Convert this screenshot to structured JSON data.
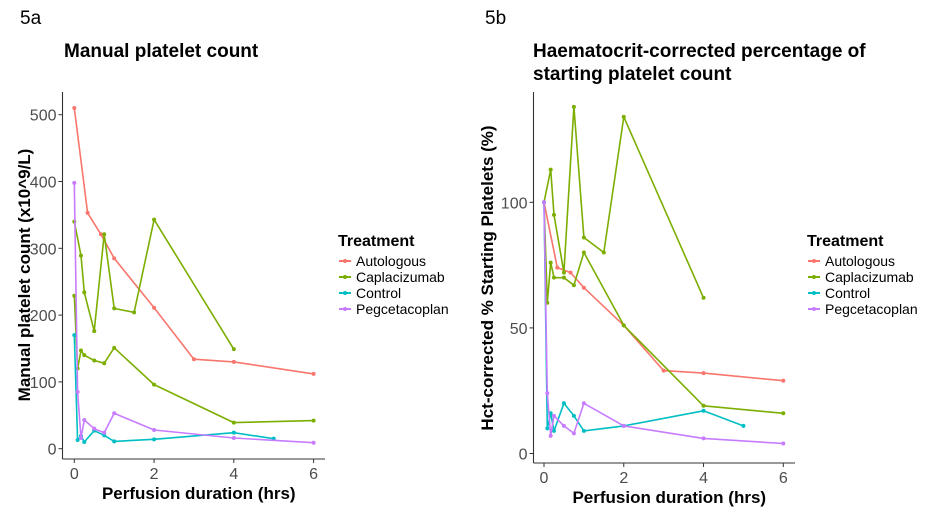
{
  "panels": [
    {
      "label": "5a",
      "title_lines": [
        "Manual platelet count"
      ]
    },
    {
      "label": "5b",
      "title_lines": [
        "Haematocrit-corrected percentage of",
        "starting platelet count"
      ]
    }
  ],
  "legend": {
    "title": "Treatment",
    "items": [
      {
        "name": "Autologous",
        "color": "#F8766D"
      },
      {
        "name": "Caplacizumab",
        "color": "#7CAE00"
      },
      {
        "name": "Control",
        "color": "#00BFC4"
      },
      {
        "name": "Pegcetacoplan",
        "color": "#C77CFF"
      }
    ]
  },
  "chart_data": [
    {
      "type": "line",
      "title": "Manual platelet count",
      "xlabel": "Perfusion duration (hrs)",
      "ylabel": "Manual platelet count (x10^9/L)",
      "xlim": [
        0,
        6
      ],
      "ylim": [
        0,
        520
      ],
      "xticks": [
        0,
        2,
        4,
        6
      ],
      "yticks": [
        0,
        100,
        200,
        300,
        400,
        500
      ],
      "grid": false,
      "legend_position": "right",
      "series": [
        {
          "name": "Autologous",
          "color": "#F8766D",
          "points": [
            [
              0,
              510
            ],
            [
              0.333,
              353
            ],
            [
              0.667,
              321
            ],
            [
              1,
              285
            ],
            [
              2,
              211
            ],
            [
              3,
              134
            ],
            [
              4,
              130
            ],
            [
              6,
              112
            ]
          ]
        },
        {
          "name": "Caplacizumab",
          "color": "#7CAE00",
          "points": [
            [
              0,
              340
            ],
            [
              0.167,
              289
            ],
            [
              0.25,
              234
            ],
            [
              0.5,
              176
            ],
            [
              0.75,
              321
            ],
            [
              1,
              210
            ],
            [
              1.5,
              204
            ],
            [
              2,
              343
            ],
            [
              4,
              149
            ]
          ]
        },
        {
          "name": "Caplacizumab",
          "color": "#7CAE00",
          "points": [
            [
              0,
              229
            ],
            [
              0.083,
              120
            ],
            [
              0.167,
              147
            ],
            [
              0.25,
              140
            ],
            [
              0.5,
              132
            ],
            [
              0.75,
              128
            ],
            [
              1,
              151
            ],
            [
              2,
              96
            ],
            [
              4,
              39
            ],
            [
              6,
              42
            ]
          ]
        },
        {
          "name": "Control",
          "color": "#00BFC4",
          "points": [
            [
              0,
              170
            ],
            [
              0.083,
              13
            ],
            [
              0.167,
              19
            ],
            [
              0.25,
              10
            ],
            [
              0.5,
              27
            ],
            [
              0.75,
              20
            ],
            [
              1,
              11
            ],
            [
              2,
              14
            ],
            [
              4,
              24
            ],
            [
              5,
              15
            ]
          ]
        },
        {
          "name": "Pegcetacoplan",
          "color": "#C77CFF",
          "points": [
            [
              0,
              398
            ],
            [
              0.083,
              85
            ],
            [
              0.167,
              16
            ],
            [
              0.25,
              43
            ],
            [
              0.5,
              30
            ],
            [
              0.75,
              24
            ],
            [
              1,
              53
            ],
            [
              2,
              28
            ],
            [
              4,
              16
            ],
            [
              6,
              9
            ]
          ]
        }
      ]
    },
    {
      "type": "line",
      "title": "Haematocrit-corrected percentage of starting platelet count",
      "xlabel": "Perfusion duration (hrs)",
      "ylabel": "Hct-corrected % Starting Platelets (%)",
      "xlim": [
        0,
        6
      ],
      "ylim": [
        0,
        142
      ],
      "xticks": [
        0,
        2,
        4,
        6
      ],
      "yticks": [
        0,
        50,
        100
      ],
      "grid": false,
      "legend_position": "right",
      "series": [
        {
          "name": "Autologous",
          "color": "#F8766D",
          "points": [
            [
              0,
              100
            ],
            [
              0.333,
              74
            ],
            [
              0.667,
              72
            ],
            [
              1,
              66
            ],
            [
              2,
              51
            ],
            [
              3,
              33
            ],
            [
              4,
              32
            ],
            [
              6,
              29
            ]
          ]
        },
        {
          "name": "Caplacizumab",
          "color": "#7CAE00",
          "points": [
            [
              0,
              100
            ],
            [
              0.167,
              113
            ],
            [
              0.25,
              95
            ],
            [
              0.5,
              72
            ],
            [
              0.75,
              138
            ],
            [
              1,
              86
            ],
            [
              1.5,
              80
            ],
            [
              2,
              134
            ],
            [
              4,
              62
            ]
          ]
        },
        {
          "name": "Caplacizumab",
          "color": "#7CAE00",
          "points": [
            [
              0,
              100
            ],
            [
              0.083,
              60
            ],
            [
              0.167,
              76
            ],
            [
              0.25,
              70
            ],
            [
              0.5,
              70
            ],
            [
              0.75,
              67
            ],
            [
              1,
              80
            ],
            [
              2,
              51
            ],
            [
              4,
              19
            ],
            [
              6,
              16
            ]
          ]
        },
        {
          "name": "Control",
          "color": "#00BFC4",
          "points": [
            [
              0,
              100
            ],
            [
              0.083,
              10
            ],
            [
              0.167,
              16
            ],
            [
              0.25,
              9
            ],
            [
              0.5,
              20
            ],
            [
              0.75,
              15
            ],
            [
              1,
              9
            ],
            [
              2,
              11
            ],
            [
              4,
              17
            ],
            [
              5,
              11
            ]
          ]
        },
        {
          "name": "Pegcetacoplan",
          "color": "#C77CFF",
          "points": [
            [
              0,
              100
            ],
            [
              0.083,
              24
            ],
            [
              0.167,
              7
            ],
            [
              0.25,
              15
            ],
            [
              0.5,
              11
            ],
            [
              0.75,
              8
            ],
            [
              1,
              20
            ],
            [
              2,
              11
            ],
            [
              4,
              6
            ],
            [
              6,
              4
            ]
          ]
        }
      ]
    }
  ]
}
